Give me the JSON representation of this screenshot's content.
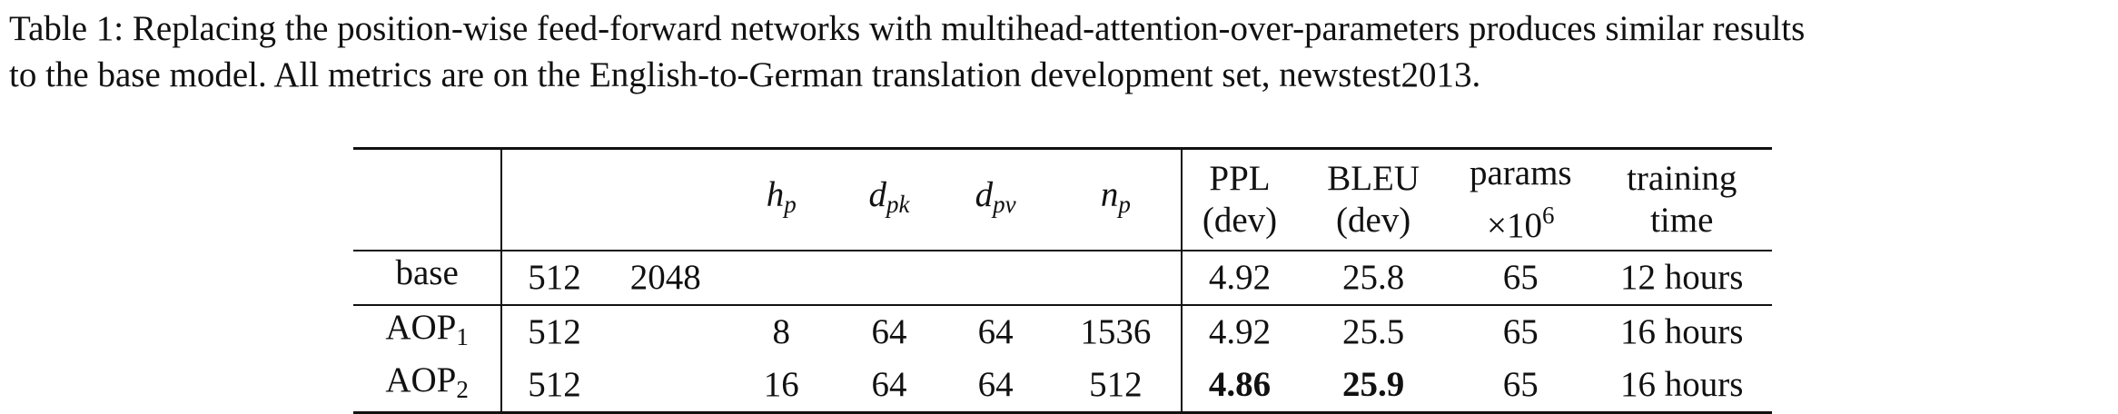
{
  "caption": {
    "line1": "Table 1: Replacing the position-wise feed-forward networks with multihead-attention-over-parameters produces similar results",
    "line2": "to the base model. All metrics are on the English-to-German translation development set, newstest2013."
  },
  "table": {
    "headers": {
      "hp": {
        "base": "h",
        "sub": "p"
      },
      "dpk": {
        "base": "d",
        "sub": "pk"
      },
      "dpv": {
        "base": "d",
        "sub": "pv"
      },
      "np": {
        "base": "n",
        "sub": "p"
      },
      "ppl": {
        "line1": "PPL",
        "line2": "(dev)"
      },
      "bleu": {
        "line1": "BLEU",
        "line2": "(dev)"
      },
      "params": {
        "line1": "params",
        "line2_base": "×10",
        "line2_sup": "6"
      },
      "time": {
        "line1": "training",
        "line2": "time"
      }
    },
    "rows": [
      {
        "name": "base",
        "name_sub": "",
        "d": "512",
        "ff": "2048",
        "hp": "",
        "dpk": "",
        "dpv": "",
        "np": "",
        "ppl": "4.92",
        "bleu": "25.8",
        "params": "65",
        "time": "12 hours"
      },
      {
        "name": "AOP",
        "name_sub": "1",
        "d": "512",
        "ff": "",
        "hp": "8",
        "dpk": "64",
        "dpv": "64",
        "np": "1536",
        "ppl": "4.92",
        "bleu": "25.5",
        "params": "65",
        "time": "16 hours"
      },
      {
        "name": "AOP",
        "name_sub": "2",
        "d": "512",
        "ff": "",
        "hp": "16",
        "dpk": "64",
        "dpv": "64",
        "np": "512",
        "ppl": "4.86",
        "bleu": "25.9",
        "params": "65",
        "time": "16 hours"
      }
    ]
  }
}
